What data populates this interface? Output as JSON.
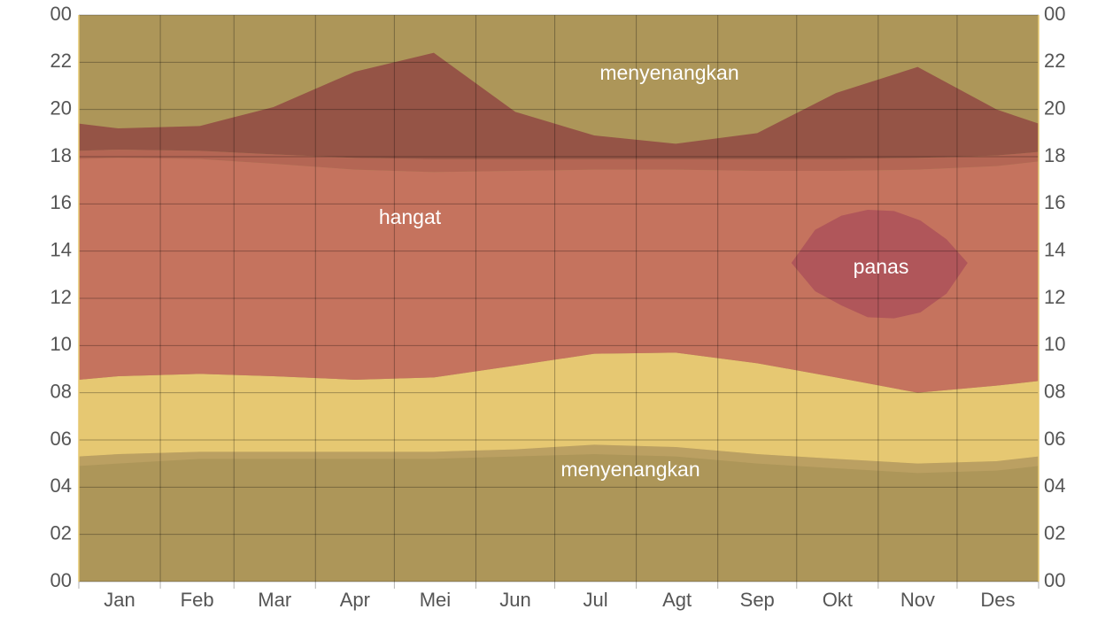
{
  "chart_data": {
    "type": "band",
    "background": "#ad9659",
    "grid": true,
    "xlim": [
      0,
      365
    ],
    "ylim": [
      0,
      24
    ],
    "xticks": [
      0,
      31,
      59,
      90,
      120,
      151,
      181,
      212,
      243,
      273,
      304,
      334,
      365
    ],
    "categories": [
      "Jan",
      "Feb",
      "Mar",
      "Apr",
      "Mei",
      "Jun",
      "Jul",
      "Agt",
      "Sep",
      "Okt",
      "Nov",
      "Des"
    ],
    "yticks": [
      {
        "value": 0,
        "label": "00"
      },
      {
        "value": 2,
        "label": "02"
      },
      {
        "value": 4,
        "label": "04"
      },
      {
        "value": 6,
        "label": "06"
      },
      {
        "value": 8,
        "label": "08"
      },
      10,
      12,
      14,
      16,
      18,
      20,
      22,
      {
        "value": 24,
        "label": "00"
      }
    ],
    "x": [
      0,
      15,
      46,
      74,
      105,
      135,
      166,
      196,
      227,
      258,
      288,
      319,
      349,
      365
    ],
    "series": [
      {
        "color": "#bba062",
        "low": [
          4.9,
          5.0,
          5.2,
          5.2,
          5.2,
          5.2,
          5.3,
          5.4,
          5.3,
          5.0,
          4.8,
          4.6,
          4.7,
          4.9
        ],
        "high": [
          5.3,
          5.4,
          5.5,
          5.5,
          5.5,
          5.5,
          5.6,
          5.8,
          5.7,
          5.4,
          5.2,
          5.0,
          5.1,
          5.3
        ]
      },
      {
        "color": "#e6c872",
        "low": [
          5.3,
          5.4,
          5.5,
          5.5,
          5.5,
          5.5,
          5.6,
          5.8,
          5.7,
          5.4,
          5.2,
          5.0,
          5.1,
          5.3
        ],
        "high": [
          8.55,
          8.7,
          8.8,
          8.7,
          8.55,
          8.65,
          9.15,
          9.65,
          9.7,
          9.25,
          8.65,
          8.0,
          8.3,
          8.5
        ]
      },
      {
        "color": "#c5735e",
        "low": [
          8.55,
          8.7,
          8.8,
          8.7,
          8.55,
          8.65,
          9.15,
          9.65,
          9.7,
          9.25,
          8.65,
          8.0,
          8.3,
          8.5
        ],
        "high": [
          17.9,
          17.95,
          17.9,
          17.7,
          17.45,
          17.35,
          17.4,
          17.45,
          17.45,
          17.4,
          17.4,
          17.45,
          17.6,
          17.8
        ]
      },
      {
        "color": "#b46654",
        "low": [
          17.9,
          17.95,
          17.9,
          17.7,
          17.45,
          17.35,
          17.4,
          17.45,
          17.45,
          17.4,
          17.4,
          17.45,
          17.6,
          17.8
        ],
        "high": [
          18.25,
          18.3,
          18.25,
          18.1,
          17.95,
          17.9,
          17.9,
          17.9,
          17.9,
          17.9,
          17.9,
          17.95,
          18.05,
          18.2
        ]
      },
      {
        "color": "#955446",
        "low": [
          18.25,
          18.3,
          18.25,
          18.1,
          17.95,
          17.9,
          17.9,
          17.9,
          17.9,
          17.9,
          17.9,
          17.95,
          18.05,
          18.2
        ],
        "high": [
          19.4,
          19.2,
          19.3,
          20.1,
          21.6,
          22.4,
          19.9,
          18.9,
          18.55,
          19.0,
          20.7,
          21.8,
          20.0,
          19.4
        ]
      },
      {
        "color": "#b0565a",
        "x": [
          271,
          280,
          290,
          300,
          310,
          320,
          330,
          338
        ],
        "low": [
          13.5,
          12.3,
          11.7,
          11.2,
          11.15,
          11.4,
          12.2,
          13.5
        ],
        "high": [
          13.5,
          14.9,
          15.5,
          15.75,
          15.7,
          15.3,
          14.5,
          13.5
        ]
      }
    ],
    "annotations": [
      "menyenangkan",
      "hangat",
      "panas",
      "menyenangkan"
    ]
  }
}
